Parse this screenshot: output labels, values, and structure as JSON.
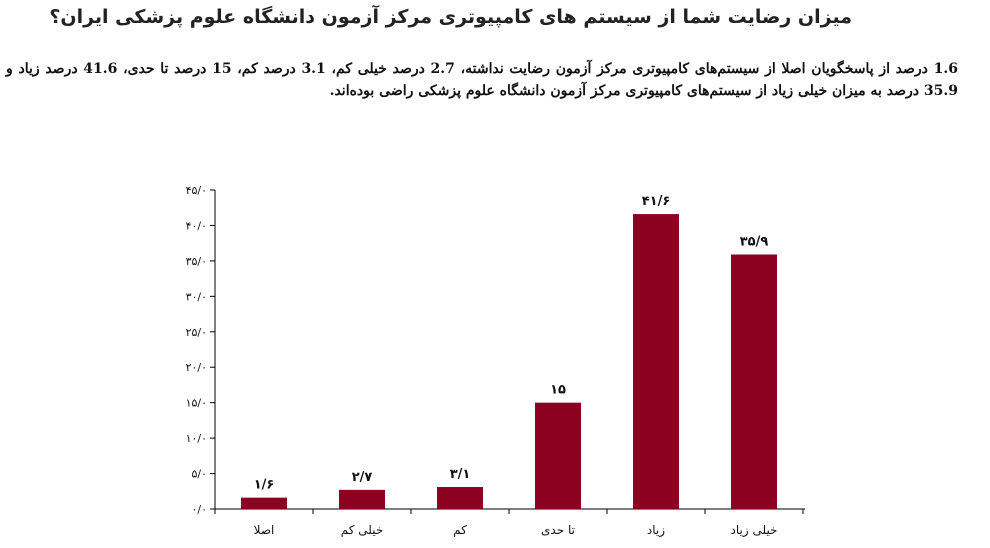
{
  "page": {
    "title": "میزان رضایت شما از سیستم های کامپیوتری مرکز آزمون دانشگاه علوم پزشکی ایران؟",
    "description": "1.6 درصد از پاسخگویان اصلا از سیستم‌های کامپیوتری مرکز آزمون رضایت نداشته، 2.7 درصد خیلی کم، 3.1 درصد کم، 15 درصد تا حدی، 41.6 درصد زیاد و 35.9 درصد به میزان خیلی زیاد از سیستم‌های کامپیوتری مرکز آزمون دانشگاه علوم پزشکی راضی بوده‌اند."
  },
  "colors": {
    "bar": "#8c0020",
    "axis": "#000000"
  },
  "chart_data": {
    "type": "bar",
    "title": "",
    "xlabel": "",
    "ylabel": "",
    "categories": [
      "اصلا",
      "خیلی کم",
      "کم",
      "تا حدی",
      "زیاد",
      "خیلی زیاد"
    ],
    "values": [
      1.6,
      2.7,
      3.1,
      15,
      41.6,
      35.9
    ],
    "value_labels": [
      "۱/۶",
      "۲/۷",
      "۳/۱",
      "۱۵",
      "۴۱/۶",
      "۳۵/۹"
    ],
    "ylim": [
      0,
      45
    ],
    "yticks": [
      0,
      5,
      10,
      15,
      20,
      25,
      30,
      35,
      40,
      45
    ],
    "ytick_labels": [
      "۰/۰",
      "۵/۰",
      "۱۰/۰",
      "۱۵/۰",
      "۲۰/۰",
      "۲۵/۰",
      "۳۰/۰",
      "۳۵/۰",
      "۴۰/۰",
      "۴۵/۰"
    ],
    "grid": false,
    "legend": "none"
  }
}
